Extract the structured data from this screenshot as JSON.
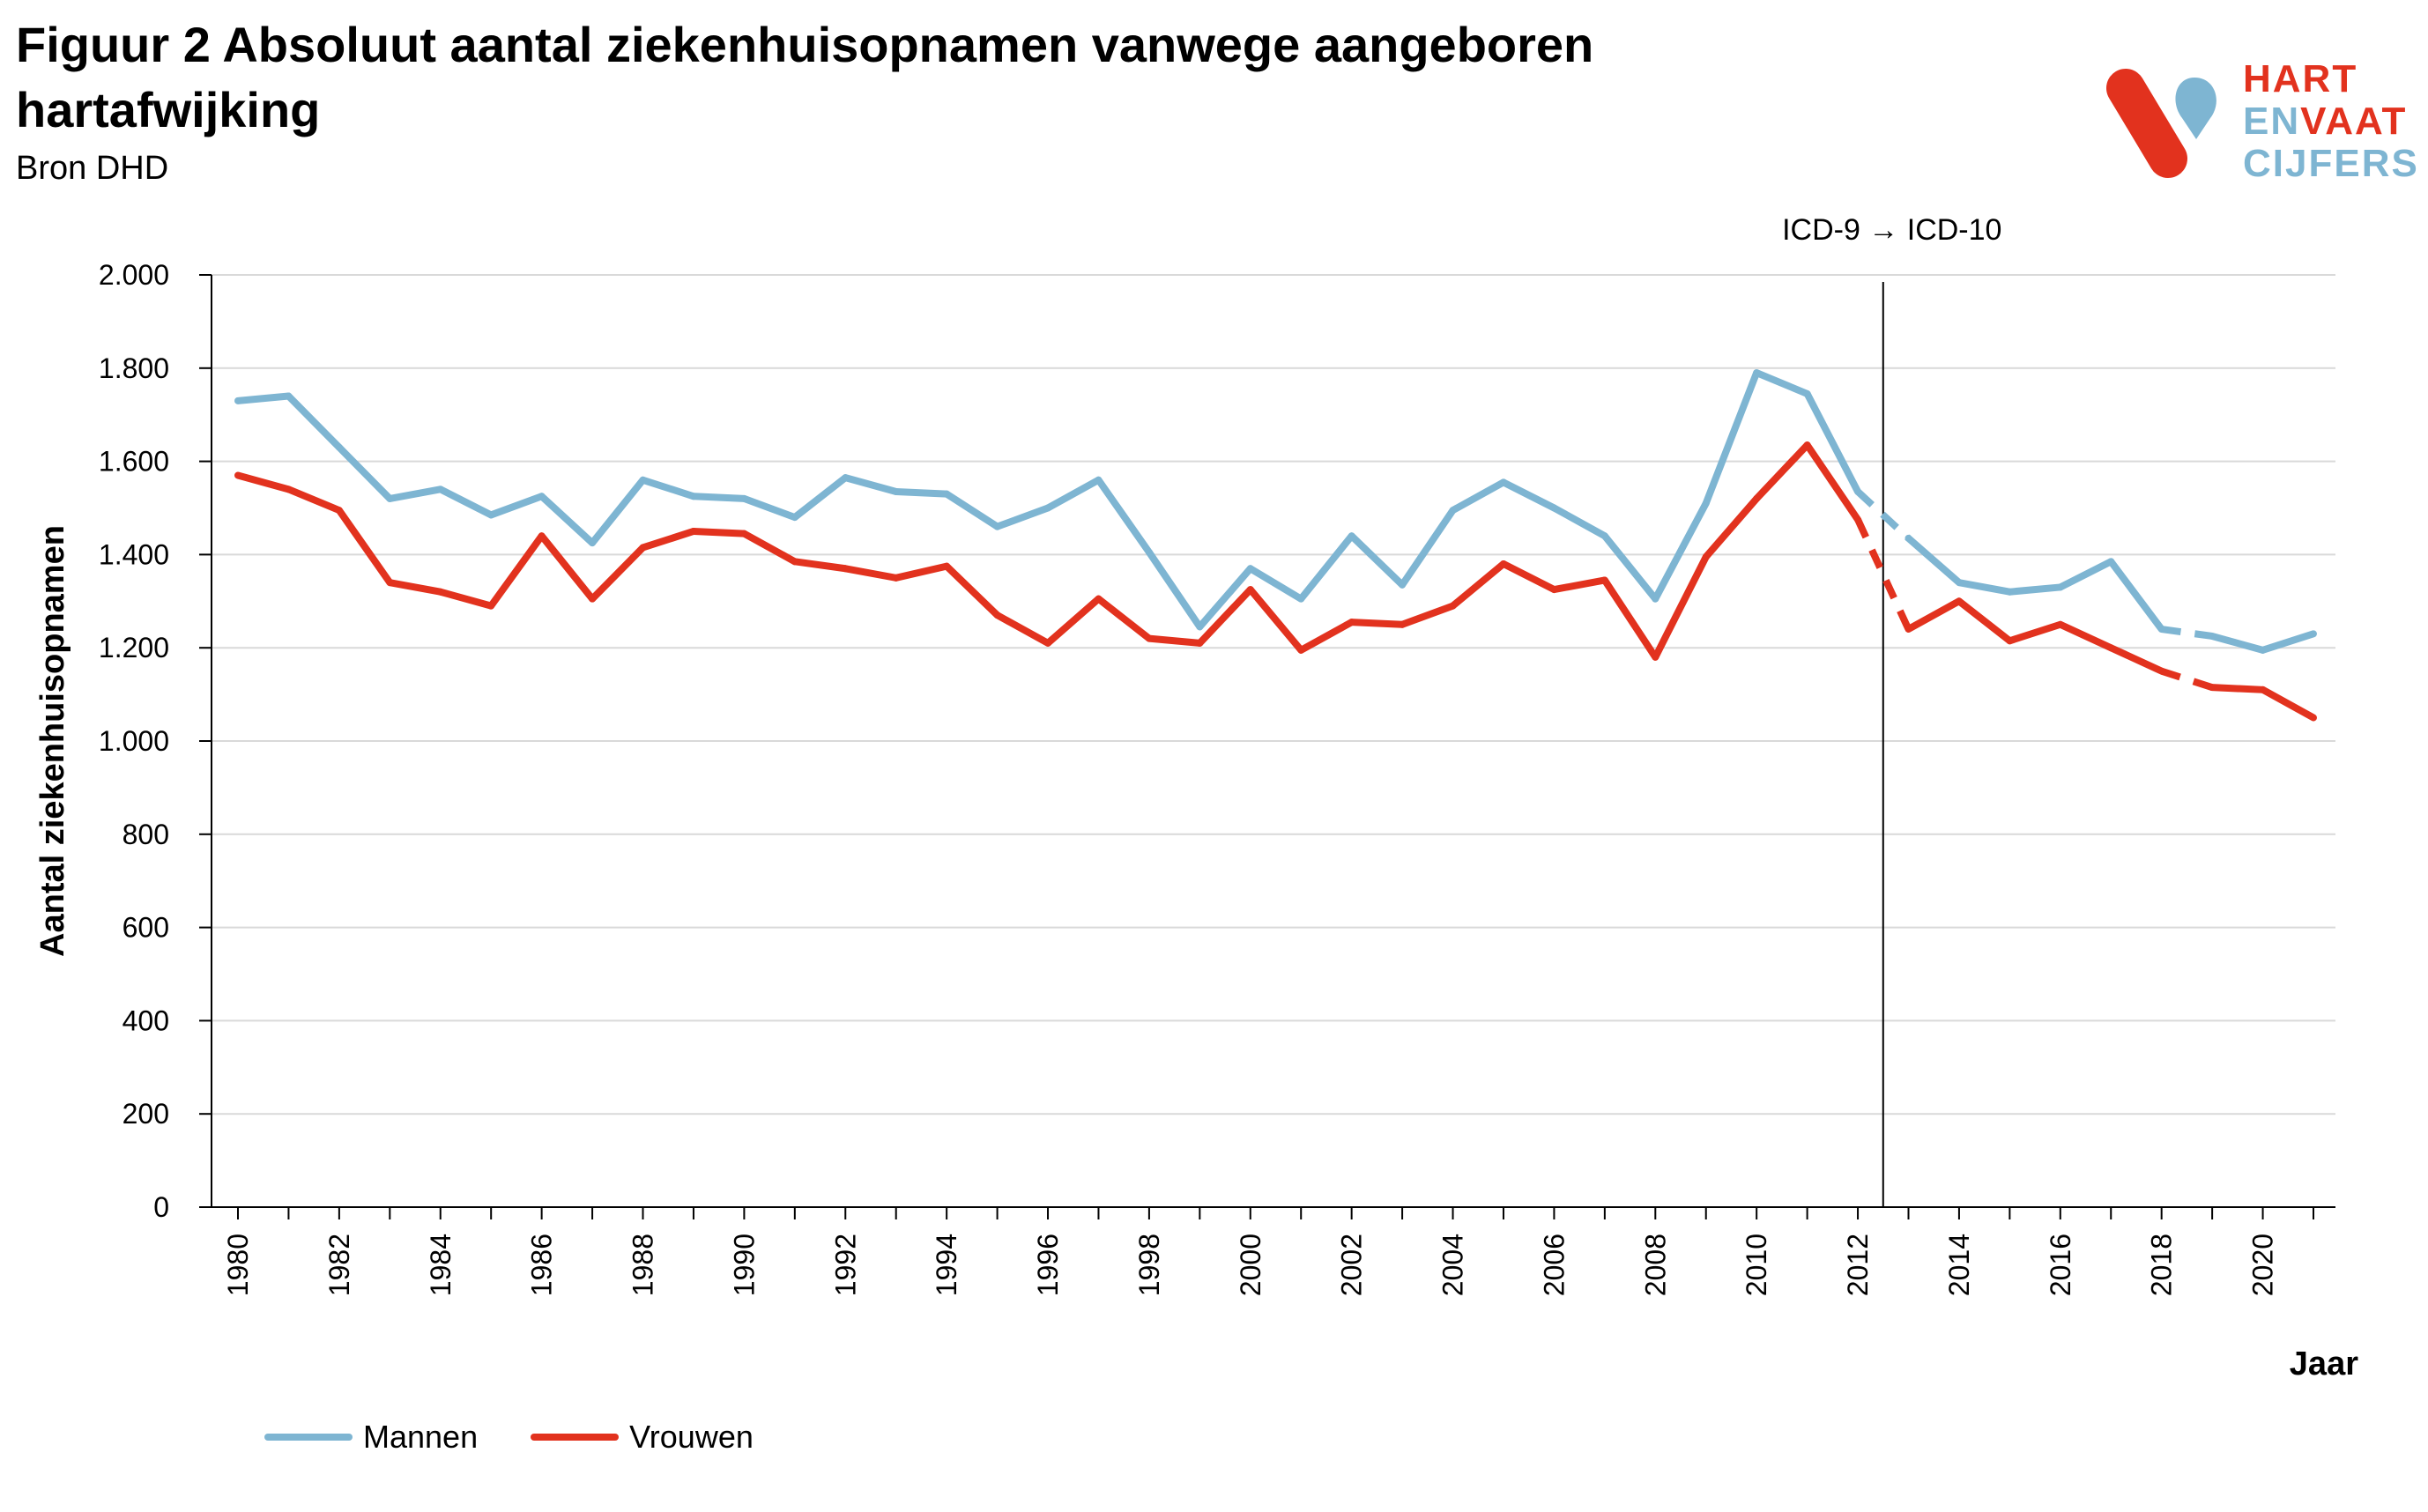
{
  "header": {
    "title": "Figuur 2 Absoluut aantal ziekenhuisopnamen vanwege aangeboren hartafwijking",
    "source": "Bron DHD"
  },
  "logo": {
    "line1": "HART",
    "line2_a": "EN",
    "line2_b": "VAAT",
    "line3": "CIJFERS",
    "colors": {
      "red": "#e2321e",
      "blue": "#7eb5d2"
    }
  },
  "chart_data": {
    "type": "line",
    "xlabel": "Jaar",
    "ylabel": "Aantal ziekenhuisopnamen",
    "ylim": [
      0,
      2000
    ],
    "yticks": [
      0,
      200,
      400,
      600,
      800,
      1000,
      1200,
      1400,
      1600,
      1800,
      2000
    ],
    "ytick_labels": [
      "0",
      "200",
      "400",
      "600",
      "800",
      "1.000",
      "1.200",
      "1.400",
      "1.600",
      "1.800",
      "2.000"
    ],
    "xlim": [
      1980,
      2021
    ],
    "xtick_labels": [
      "1980",
      "1982",
      "1984",
      "1986",
      "1988",
      "1990",
      "1992",
      "1994",
      "1996",
      "1998",
      "2000",
      "2002",
      "2004",
      "2006",
      "2008",
      "2010",
      "2012",
      "2014",
      "2016",
      "2018",
      "2020"
    ],
    "grid": true,
    "annotation": {
      "text": "ICD-9 → ICD-10",
      "x": 2012.5
    },
    "x": [
      1980,
      1981,
      1982,
      1983,
      1984,
      1985,
      1986,
      1987,
      1988,
      1989,
      1990,
      1991,
      1992,
      1993,
      1994,
      1995,
      1996,
      1997,
      1998,
      1999,
      2000,
      2001,
      2002,
      2003,
      2004,
      2005,
      2006,
      2007,
      2008,
      2009,
      2010,
      2011,
      2012,
      2013,
      2014,
      2015,
      2016,
      2017,
      2018,
      2019,
      2020,
      2021
    ],
    "dashed_segments": [
      [
        2012,
        2013
      ],
      [
        2018,
        2019
      ]
    ],
    "series": [
      {
        "name": "Mannen",
        "color": "#7eb5d2",
        "values": [
          1730,
          1740,
          1630,
          1520,
          1540,
          1485,
          1525,
          1425,
          1560,
          1525,
          1520,
          1480,
          1565,
          1535,
          1530,
          1460,
          1500,
          1560,
          1405,
          1245,
          1370,
          1305,
          1440,
          1335,
          1495,
          1555,
          1500,
          1440,
          1305,
          1510,
          1790,
          1745,
          1535,
          1435,
          1340,
          1320,
          1330,
          1385,
          1240,
          1225,
          1195,
          1230
        ]
      },
      {
        "name": "Vrouwen",
        "color": "#e2321e",
        "values": [
          1570,
          1540,
          1495,
          1340,
          1320,
          1290,
          1440,
          1305,
          1415,
          1450,
          1445,
          1385,
          1370,
          1350,
          1375,
          1270,
          1210,
          1305,
          1220,
          1210,
          1325,
          1195,
          1255,
          1250,
          1290,
          1380,
          1325,
          1345,
          1180,
          1395,
          1520,
          1635,
          1475,
          1240,
          1300,
          1215,
          1250,
          1200,
          1150,
          1115,
          1110,
          1050
        ]
      }
    ]
  }
}
